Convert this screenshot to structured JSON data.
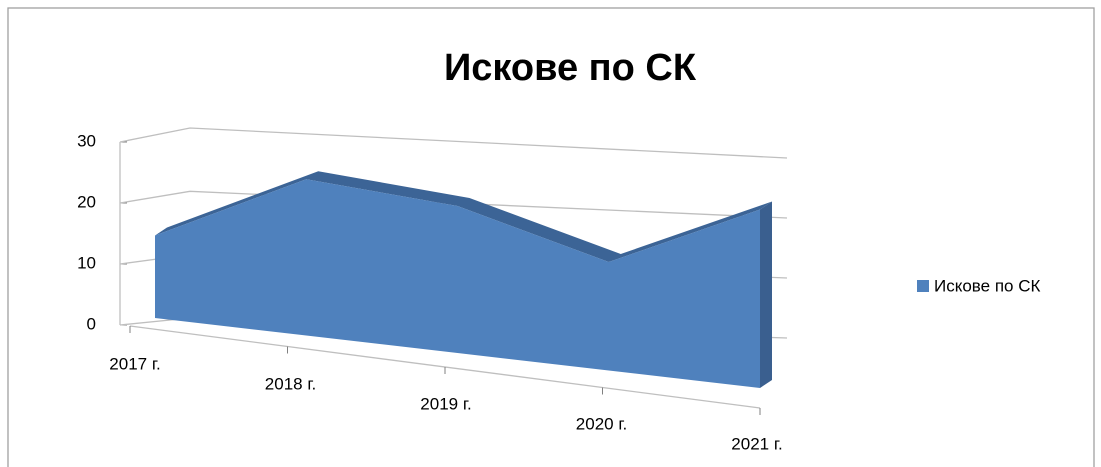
{
  "chart_data": {
    "type": "area3d",
    "title": "Искове по СК",
    "categories": [
      "2017 г.",
      "2018 г.",
      "2019 г.",
      "2020 г.",
      "2021 г."
    ],
    "series": [
      {
        "name": "Искове по СК",
        "color": "#4f81bd",
        "values": [
          15,
          25,
          21,
          14,
          21
        ]
      }
    ],
    "ylim": [
      0,
      30
    ],
    "yticks": [
      0,
      10,
      20,
      30
    ],
    "grid": true,
    "legend": "right"
  }
}
